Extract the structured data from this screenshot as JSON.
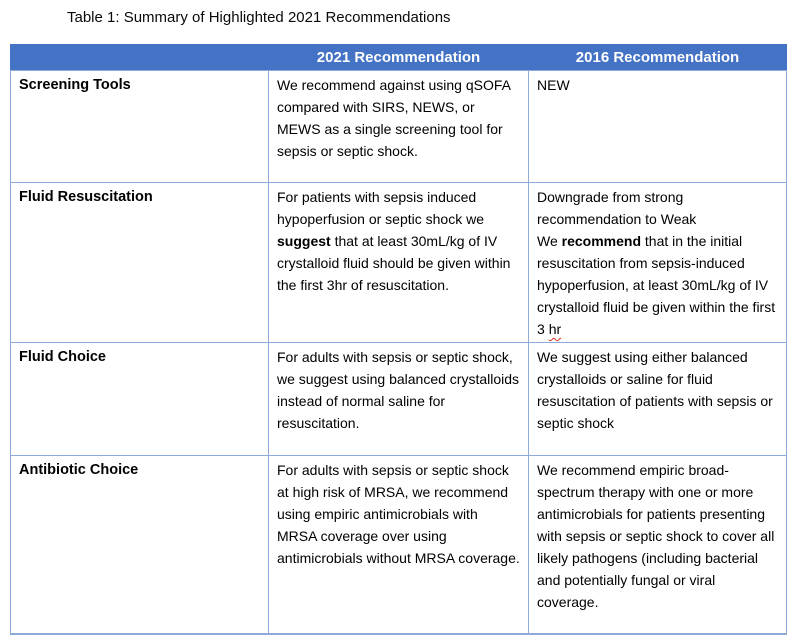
{
  "title": "Table 1: Summary of Highlighted 2021 Recommendations",
  "colors": {
    "header_bg": "#4472C4",
    "header_text": "#FFFFFF",
    "cell_border": "#8EAADB",
    "body_text": "#000000",
    "spellcheck_underline": "#E03020"
  },
  "table": {
    "headers": {
      "col_label": "",
      "col_2021": "2021 Recommendation",
      "col_2016": "2016 Recommendation"
    },
    "rows": [
      {
        "label": "Screening Tools",
        "rec2021": [
          {
            "t": "We recommend against using qSOFA compared with SIRS, NEWS, or MEWS as a single screening tool for sepsis or septic shock."
          }
        ],
        "rec2016": [
          {
            "t": "NEW"
          }
        ]
      },
      {
        "label": "Fluid Resuscitation",
        "rec2021": [
          {
            "t": "For patients with sepsis induced hypoperfusion or septic shock we "
          },
          {
            "t": "suggest",
            "b": true
          },
          {
            "t": " that at least 30mL/kg of IV crystalloid fluid should be given within the first 3hr of resuscitation."
          }
        ],
        "rec2016": [
          {
            "t": "Downgrade from strong recommendation to Weak"
          },
          {
            "br": true
          },
          {
            "t": "We "
          },
          {
            "t": "recommend",
            "b": true
          },
          {
            "t": " that in the initial resuscitation from sepsis-induced hypoperfusion, at least 30mL/kg of IV crystalloid fluid be given within the first 3 "
          },
          {
            "t": "hr",
            "wavy": true
          }
        ]
      },
      {
        "label": "Fluid Choice",
        "rec2021": [
          {
            "t": "For adults with sepsis or septic shock, we suggest using balanced crystalloids instead of normal saline for resuscitation."
          }
        ],
        "rec2016": [
          {
            "t": "We suggest using either balanced crystalloids or saline for fluid resuscitation of patients with sepsis or septic shock"
          }
        ]
      },
      {
        "label": "Antibiotic Choice",
        "rec2021": [
          {
            "t": "For adults with sepsis or septic shock at high risk of MRSA, we recommend using empiric antimicrobials with MRSA coverage over using antimicrobials without MRSA coverage."
          }
        ],
        "rec2016": [
          {
            "t": "We recommend empiric broad-spectrum therapy with one or more antimicrobials for patients presenting with sepsis or septic shock to cover all likely pathogens (including bacterial and potentially fungal or viral coverage."
          }
        ]
      }
    ]
  }
}
